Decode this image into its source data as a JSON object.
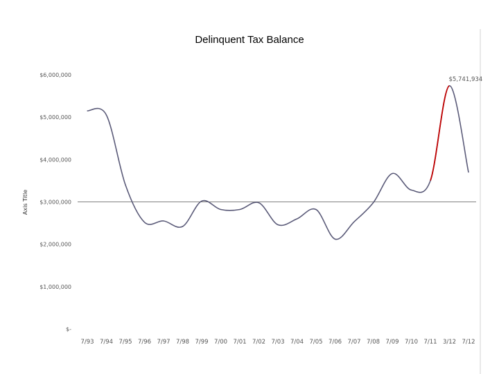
{
  "chart_data": {
    "type": "line",
    "title": "Delinquent Tax Balance",
    "xlabel": "",
    "ylabel": "Axis Title",
    "ylim": [
      0,
      6000000
    ],
    "yticks": [
      {
        "value": 0,
        "label": "$-"
      },
      {
        "value": 1000000,
        "label": "$1,000,000"
      },
      {
        "value": 2000000,
        "label": "$2,000,000"
      },
      {
        "value": 3000000,
        "label": "$3,000,000"
      },
      {
        "value": 4000000,
        "label": "$4,000,000"
      },
      {
        "value": 5000000,
        "label": "$5,000,000"
      },
      {
        "value": 6000000,
        "label": "$6,000,000"
      }
    ],
    "categories": [
      "7/93",
      "7/94",
      "7/95",
      "7/96",
      "7/97",
      "7/98",
      "7/99",
      "7/00",
      "7/01",
      "7/02",
      "7/03",
      "7/04",
      "7/05",
      "7/06",
      "7/07",
      "7/08",
      "7/09",
      "7/10",
      "7/11",
      "3/12",
      "7/12"
    ],
    "series": [
      {
        "name": "Delinquent Tax Balance",
        "color": "#5a5a78",
        "values": [
          5150000,
          5050000,
          3400000,
          2520000,
          2550000,
          2420000,
          3020000,
          2820000,
          2820000,
          2980000,
          2460000,
          2600000,
          2820000,
          2120000,
          2530000,
          2980000,
          3670000,
          3280000,
          3500000,
          5741934,
          3700000
        ]
      }
    ],
    "highlight": {
      "from_index": 18,
      "to_index": 19,
      "color": "#c00000"
    },
    "reference_line": {
      "value": 3000000,
      "color": "#808080"
    },
    "annotations": [
      {
        "index": 19,
        "text": "$5,741,934"
      }
    ]
  }
}
